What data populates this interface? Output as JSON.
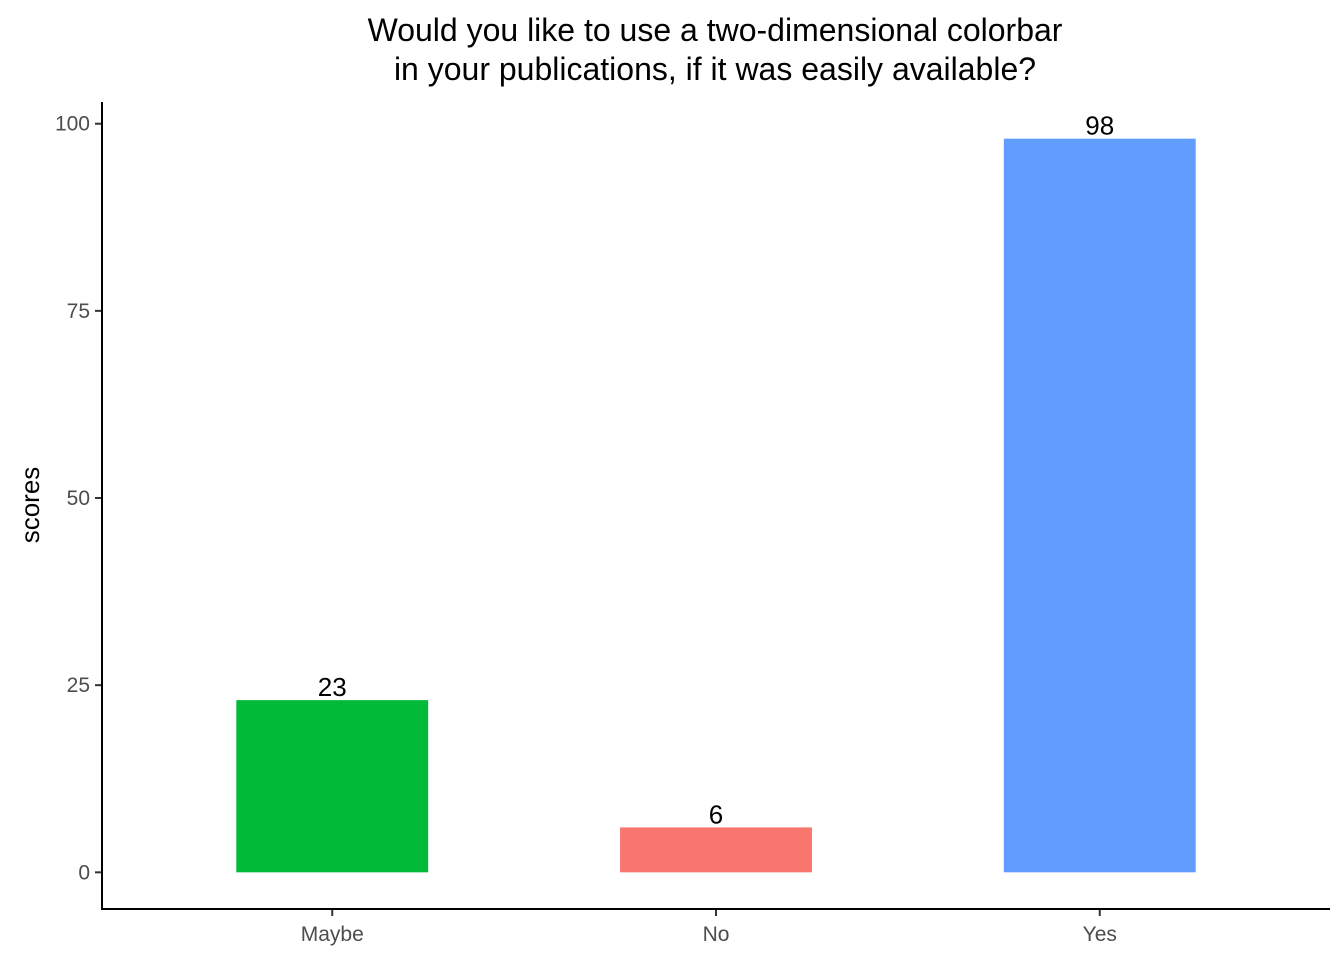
{
  "chart_data": {
    "type": "bar",
    "title": [
      "Would you like to use a two-dimensional colorbar",
      "in your publications, if it was easily available?"
    ],
    "xlabel": "",
    "ylabel": "scores",
    "categories": [
      "Maybe",
      "No",
      "Yes"
    ],
    "values": [
      23,
      6,
      98
    ],
    "colors": [
      "#00BA38",
      "#F8766D",
      "#619CFF"
    ],
    "data_labels": [
      "23",
      "6",
      "98"
    ],
    "ylim": [
      -4.9,
      102.9
    ],
    "yticks": [
      0,
      25,
      50,
      75,
      100
    ],
    "ytick_labels": [
      "0",
      "25",
      "50",
      "75",
      "100"
    ],
    "grid": false,
    "legend": "none"
  }
}
